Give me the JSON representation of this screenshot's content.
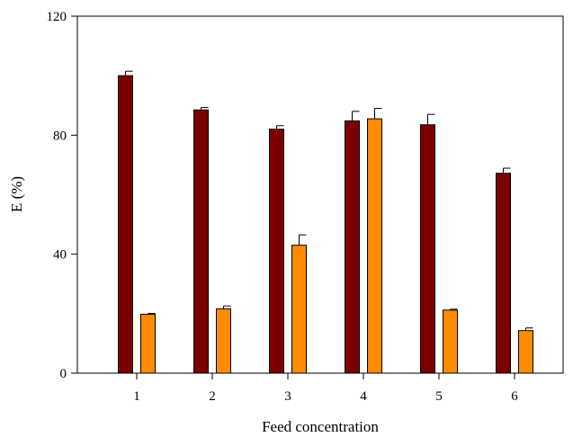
{
  "chart_data": {
    "type": "bar",
    "title": "",
    "xlabel": "Feed concentration",
    "ylabel": "E (%)",
    "categories": [
      "1",
      "2",
      "3",
      "4",
      "5",
      "6"
    ],
    "ylim": [
      0,
      120
    ],
    "yticks": [
      0,
      40,
      80,
      120
    ],
    "grid": false,
    "legend": "none",
    "series": [
      {
        "color": "#7a0000",
        "values": [
          100.0,
          88.5,
          82.0,
          84.8,
          83.5,
          67.2
        ],
        "errors": [
          1.5,
          0.8,
          1.2,
          3.2,
          3.5,
          1.7
        ]
      },
      {
        "color": "#ff8c00",
        "values": [
          19.8,
          21.6,
          43.0,
          85.5,
          21.2,
          14.3
        ],
        "errors": [
          0.3,
          1.0,
          3.5,
          3.5,
          0.3,
          0.9
        ]
      }
    ]
  }
}
